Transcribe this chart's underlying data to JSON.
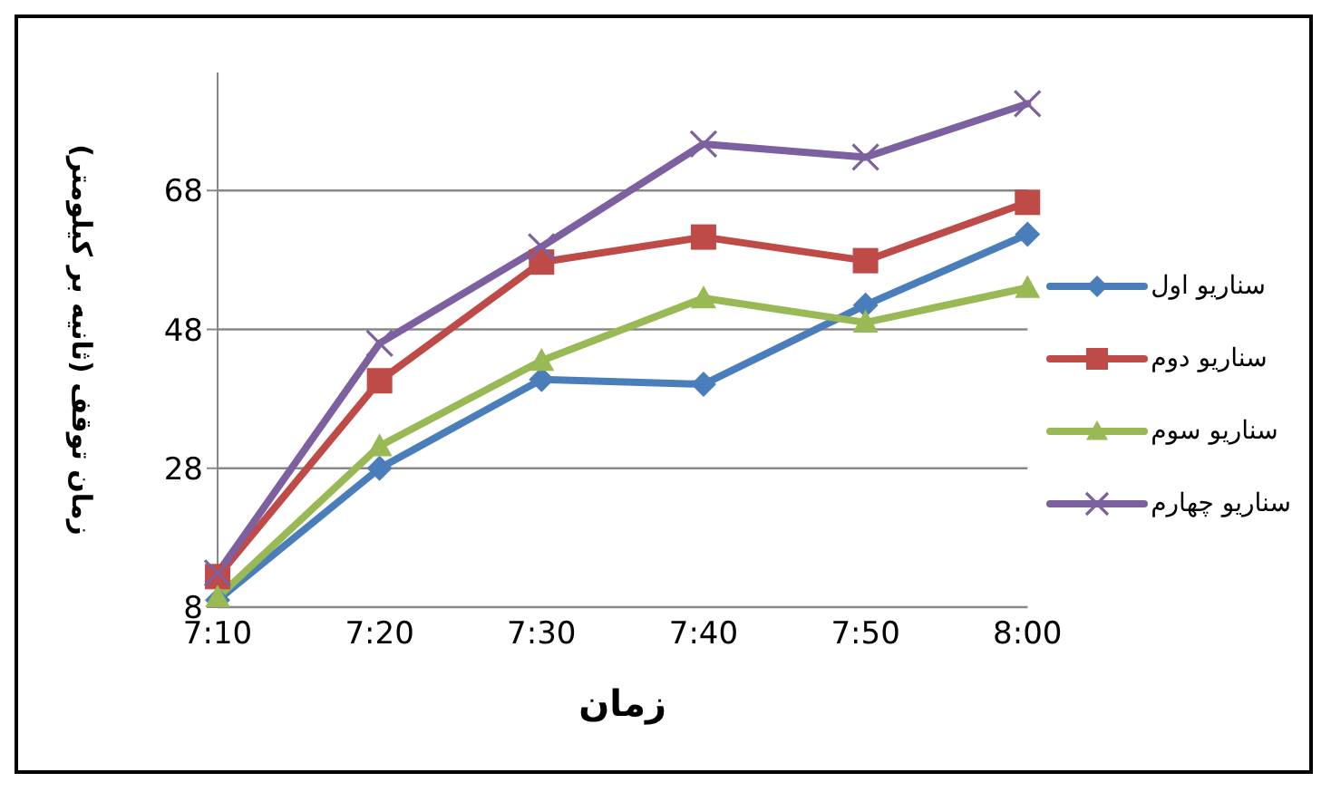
{
  "chart_data": {
    "type": "line",
    "xlabel": "زمان",
    "ylabel": "زمان توقف (ثانیه بر کیلومتر)",
    "categories": [
      "7:10",
      "7:20",
      "7:30",
      "7:40",
      "7:50",
      "8:00"
    ],
    "series": [
      {
        "name": "سناریو اول",
        "color": "#4a7ebb",
        "marker": "diamond",
        "values": [
          9,
          28,
          40.8,
          40.1,
          51.5,
          61.7
        ]
      },
      {
        "name": "سناریو دوم",
        "color": "#be4b48",
        "marker": "square",
        "values": [
          12.4,
          40.6,
          57.7,
          61.3,
          57.9,
          66.3
        ]
      },
      {
        "name": "سناریو سوم",
        "color": "#98b954",
        "marker": "triangle",
        "values": [
          9.4,
          31.2,
          43.5,
          52.5,
          49,
          54
        ]
      },
      {
        "name": "سناریو چهارم",
        "color": "#7d60a0",
        "marker": "cross",
        "values": [
          12.9,
          46,
          59.9,
          74.7,
          72.8,
          80.5
        ]
      }
    ],
    "ylim": [
      8,
      85
    ],
    "yticks": [
      8,
      28,
      48,
      68
    ],
    "grid": "y",
    "legend": "right",
    "line_style": "solid"
  }
}
